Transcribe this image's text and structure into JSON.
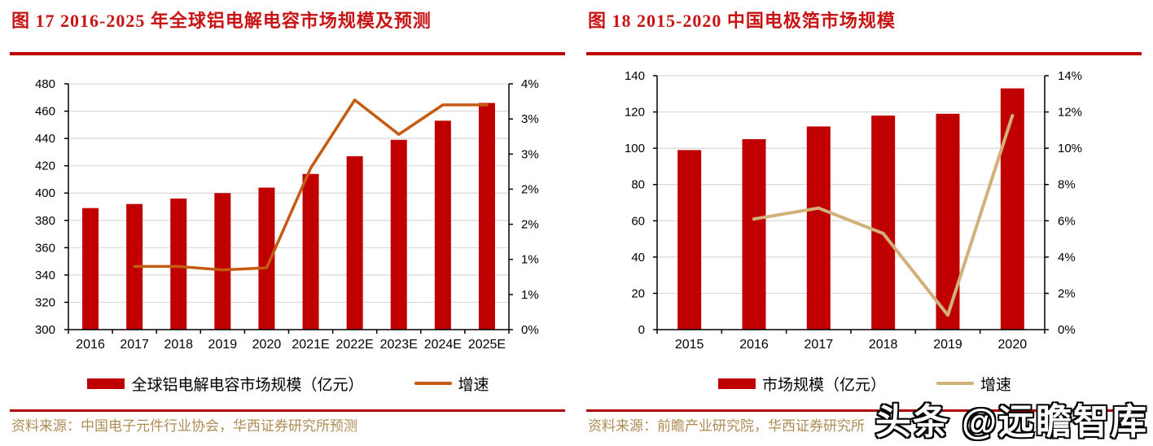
{
  "page": {
    "background": "#ffffff"
  },
  "watermark": {
    "text": "头条 @远瞻智库"
  },
  "colors": {
    "title_red": "#c81414",
    "rule_red": "#c00000",
    "bar_red": "#c00000",
    "line_orange": "#c55a11",
    "line_tan": "#d2b07a",
    "gridline_gray": "#d9d9d9",
    "source_tan": "#ae8c55"
  },
  "chart_data": [
    {
      "type": "bar+line",
      "title": "图 17 2016-2025 年全球铝电解电容市场规模及预测",
      "source": "资料来源：中国电子元件行业协会，华西证券研究所预测",
      "categories": [
        "2016",
        "2017",
        "2018",
        "2019",
        "2020",
        "2021E",
        "2022E",
        "2023E",
        "2024E",
        "2025E"
      ],
      "series": [
        {
          "name": "全球铝电解电容市场规模（亿元）",
          "type": "bar",
          "axis": "left",
          "color": "#c00000",
          "values": [
            389,
            392,
            396,
            400,
            404,
            414,
            427,
            439,
            453,
            466
          ]
        },
        {
          "name": "增速",
          "type": "line",
          "axis": "right",
          "color": "#c55a11",
          "values": [
            null,
            0.9,
            0.9,
            0.85,
            0.88,
            2.3,
            3.27,
            2.78,
            3.2,
            3.2
          ]
        }
      ],
      "left_axis": {
        "min": 300,
        "max": 480,
        "step": 20,
        "tick_labels": [
          "480",
          "460",
          "440",
          "420",
          "400",
          "380",
          "360",
          "340",
          "320",
          "300"
        ]
      },
      "right_axis": {
        "min": 0,
        "max": 3.5,
        "step": 0.5,
        "unit": "%",
        "tick_labels": [
          "4%",
          "3%",
          "3%",
          "2%",
          "2%",
          "1%",
          "1%",
          "0%"
        ]
      },
      "grid": true,
      "legend_position": "bottom"
    },
    {
      "type": "bar+line",
      "title": "图 18 2015-2020 中国电极箔市场规模",
      "source": "资料来源：前瞻产业研究院，华西证券研究所",
      "categories": [
        "2015",
        "2016",
        "2017",
        "2018",
        "2019",
        "2020"
      ],
      "series": [
        {
          "name": "市场规模（亿元）",
          "type": "bar",
          "axis": "left",
          "color": "#c00000",
          "values": [
            99,
            105,
            112,
            118,
            119,
            133
          ]
        },
        {
          "name": "增速",
          "type": "line",
          "axis": "right",
          "color": "#d2b07a",
          "values": [
            null,
            6.1,
            6.7,
            5.3,
            0.8,
            11.8
          ]
        }
      ],
      "left_axis": {
        "min": 0,
        "max": 140,
        "step": 20,
        "tick_labels": [
          "140",
          "120",
          "100",
          "80",
          "60",
          "40",
          "20",
          "0"
        ]
      },
      "right_axis": {
        "min": 0,
        "max": 14,
        "step": 2,
        "unit": "%",
        "tick_labels": [
          "14%",
          "12%",
          "10%",
          "8%",
          "6%",
          "4%",
          "2%",
          "0%"
        ]
      },
      "grid": true,
      "legend_position": "bottom"
    }
  ]
}
